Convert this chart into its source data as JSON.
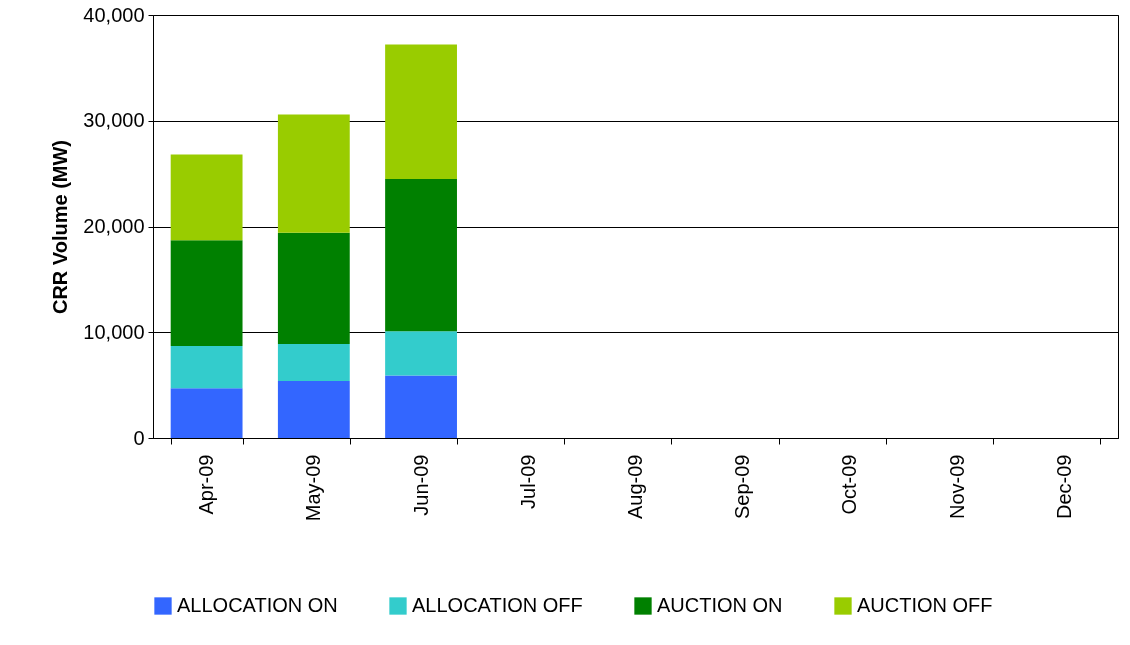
{
  "chart_data": {
    "type": "bar",
    "stacked": true,
    "ylabel": "CRR Volume (MW)",
    "categories": [
      "Apr-09",
      "May-09",
      "Jun-09",
      "Jul-09",
      "Aug-09",
      "Sep-09",
      "Oct-09",
      "Nov-09",
      "Dec-09"
    ],
    "series": [
      {
        "name": "ALLOCATION ON",
        "color": "#3366ff",
        "values": [
          4700,
          5400,
          5900,
          null,
          null,
          null,
          null,
          null,
          null
        ]
      },
      {
        "name": "ALLOCATION OFF",
        "color": "#33cccc",
        "values": [
          4000,
          3500,
          4200,
          null,
          null,
          null,
          null,
          null,
          null
        ]
      },
      {
        "name": "AUCTION ON",
        "color": "#008000",
        "values": [
          10000,
          10500,
          14400,
          null,
          null,
          null,
          null,
          null,
          null
        ]
      },
      {
        "name": "AUCTION OFF",
        "color": "#99cc00",
        "values": [
          8100,
          11200,
          12700,
          null,
          null,
          null,
          null,
          null,
          null
        ]
      }
    ],
    "ylim": [
      0,
      40000
    ],
    "yticks": [
      0,
      {
        "value": 10000,
        "label": "10,000"
      },
      {
        "value": 20000,
        "label": "20,000"
      },
      {
        "value": 30000,
        "label": "30,000"
      },
      {
        "value": 40000,
        "label": "40,000"
      }
    ],
    "grid": "y",
    "legend": "bottom"
  }
}
